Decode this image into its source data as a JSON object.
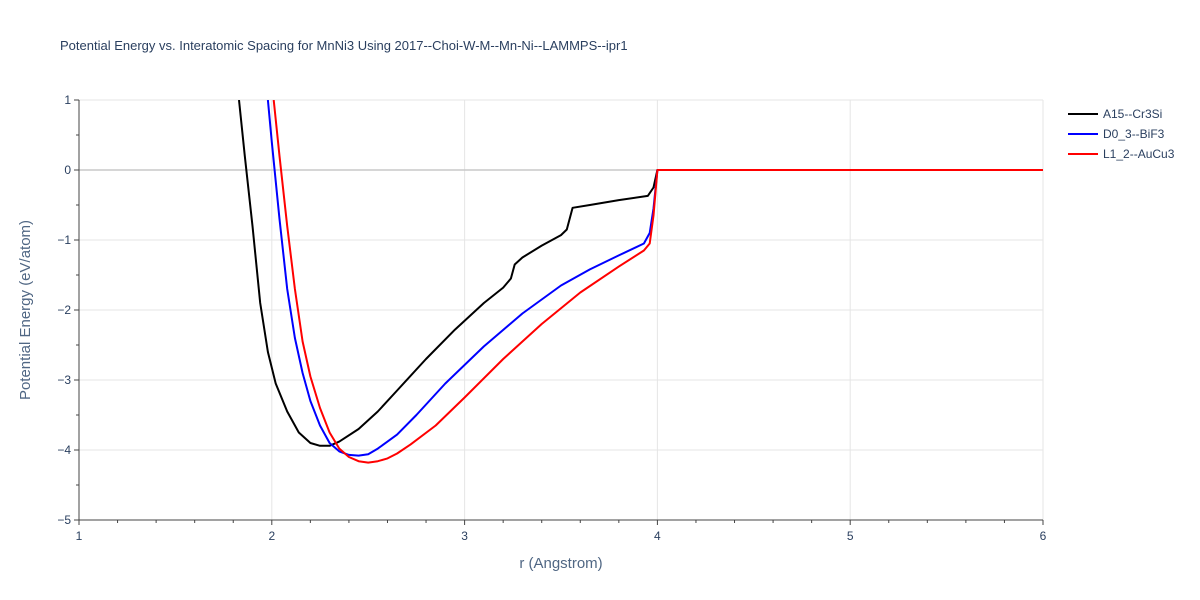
{
  "chart_data": {
    "type": "line",
    "title": "Potential Energy vs. Interatomic Spacing for MnNi3 Using 2017--Choi-W-M--Mn-Ni--LAMMPS--ipr1",
    "xlabel": "r (Angstrom)",
    "ylabel": "Potential Energy (eV/atom)",
    "xlim": [
      1,
      6
    ],
    "ylim": [
      -5,
      1
    ],
    "xticks": [
      1,
      2,
      3,
      4,
      5,
      6
    ],
    "yticks": [
      1,
      0,
      -1,
      -2,
      -3,
      -4,
      -5
    ],
    "xtick_labels": [
      "1",
      "2",
      "3",
      "4",
      "5",
      "6"
    ],
    "ytick_labels": [
      "1",
      "0",
      "−1",
      "−2",
      "−3",
      "−4",
      "−5"
    ],
    "grid": true,
    "legend_position": "top-right",
    "series": [
      {
        "name": "A15--Cr3Si",
        "color": "#000000",
        "x": [
          1.83,
          1.86,
          1.9,
          1.94,
          1.98,
          2.02,
          2.08,
          2.14,
          2.2,
          2.25,
          2.3,
          2.35,
          2.45,
          2.55,
          2.65,
          2.8,
          2.95,
          3.1,
          3.2,
          3.24,
          3.26,
          3.3,
          3.4,
          3.5,
          3.53,
          3.56,
          3.65,
          3.8,
          3.95,
          3.98,
          4.0,
          4.5,
          5.0,
          5.5,
          6.0
        ],
        "y": [
          1.0,
          0.2,
          -0.8,
          -1.9,
          -2.6,
          -3.05,
          -3.45,
          -3.75,
          -3.9,
          -3.94,
          -3.94,
          -3.88,
          -3.7,
          -3.45,
          -3.15,
          -2.7,
          -2.28,
          -1.9,
          -1.68,
          -1.55,
          -1.35,
          -1.25,
          -1.08,
          -0.93,
          -0.85,
          -0.54,
          -0.5,
          -0.43,
          -0.37,
          -0.25,
          0.0,
          0.0,
          0.0,
          0.0,
          0.0
        ]
      },
      {
        "name": "D0_3--BiF3",
        "color": "#0000ff",
        "x": [
          1.98,
          2.0,
          2.04,
          2.08,
          2.12,
          2.16,
          2.2,
          2.25,
          2.3,
          2.35,
          2.4,
          2.45,
          2.5,
          2.55,
          2.6,
          2.65,
          2.75,
          2.9,
          3.1,
          3.3,
          3.5,
          3.65,
          3.8,
          3.93,
          3.96,
          3.98,
          4.0,
          4.5,
          5.0,
          5.5,
          6.0
        ],
        "y": [
          1.0,
          0.4,
          -0.7,
          -1.7,
          -2.4,
          -2.9,
          -3.3,
          -3.65,
          -3.9,
          -4.02,
          -4.07,
          -4.08,
          -4.06,
          -3.98,
          -3.88,
          -3.78,
          -3.5,
          -3.05,
          -2.52,
          -2.05,
          -1.65,
          -1.42,
          -1.22,
          -1.05,
          -0.9,
          -0.55,
          0.0,
          0.0,
          0.0,
          0.0,
          0.0
        ]
      },
      {
        "name": "L1_2--AuCu3",
        "color": "#ff0000",
        "x": [
          2.01,
          2.04,
          2.08,
          2.12,
          2.16,
          2.2,
          2.25,
          2.3,
          2.35,
          2.4,
          2.45,
          2.5,
          2.55,
          2.6,
          2.65,
          2.72,
          2.85,
          3.0,
          3.2,
          3.4,
          3.6,
          3.8,
          3.93,
          3.96,
          3.98,
          4.0,
          4.5,
          5.0,
          5.5,
          6.0
        ],
        "y": [
          1.0,
          0.2,
          -0.8,
          -1.7,
          -2.45,
          -2.95,
          -3.4,
          -3.75,
          -3.98,
          -4.1,
          -4.16,
          -4.18,
          -4.16,
          -4.12,
          -4.05,
          -3.92,
          -3.65,
          -3.25,
          -2.7,
          -2.2,
          -1.75,
          -1.38,
          -1.15,
          -1.05,
          -0.65,
          0.0,
          0.0,
          0.0,
          0.0,
          0.0
        ]
      }
    ]
  }
}
